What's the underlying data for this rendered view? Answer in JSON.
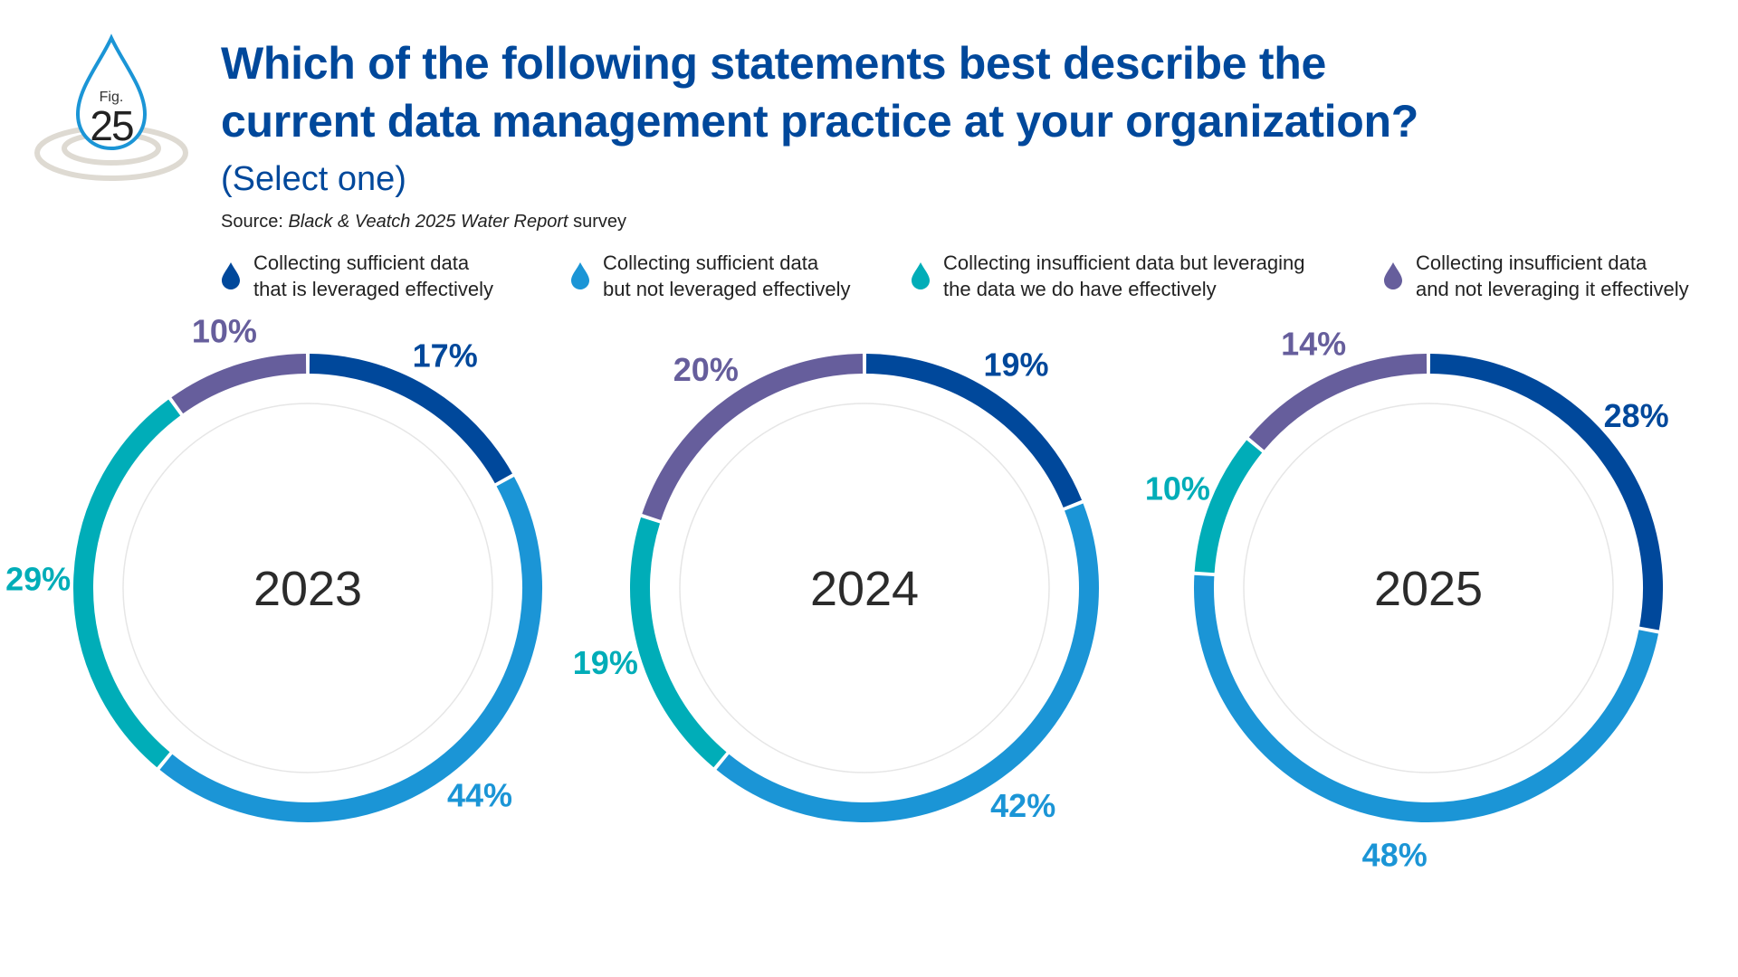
{
  "figure": {
    "prefix": "Fig.",
    "number": "25"
  },
  "header": {
    "title": "Which of the following statements best describe the\ncurrent data management practice at your organization?",
    "subtitle": "(Select one)",
    "source_prefix": "Source: ",
    "source_italic": "Black & Veatch 2025 Water Report",
    "source_suffix": " survey"
  },
  "colors": {
    "title": "#00489b",
    "badge_drop": "#1b95d6",
    "badge_ripple": "#dedad2"
  },
  "chart_data": {
    "type": "donut",
    "title": "Which of the following statements best describe the current data management practice at your organization?",
    "categories": [
      "2023",
      "2024",
      "2025"
    ],
    "series": [
      {
        "name": "Collecting sufficient data\nthat is leveraged effectively",
        "color": "#00489b",
        "icon": "water-drop-icon",
        "values": [
          17,
          19,
          28
        ]
      },
      {
        "name": "Collecting sufficient data\nbut not leveraged effectively",
        "color": "#1b95d6",
        "icon": "water-drop-icon",
        "values": [
          44,
          42,
          48
        ]
      },
      {
        "name": "Collecting insufficient data but leveraging\nthe data we do have effectively",
        "color": "#00adb8",
        "icon": "water-drop-icon",
        "values": [
          29,
          19,
          10
        ]
      },
      {
        "name": "Collecting insufficient data\nand not leveraging it effectively",
        "color": "#665e9c",
        "icon": "water-drop-icon",
        "values": [
          10,
          20,
          14
        ]
      }
    ],
    "value_suffix": "%",
    "legend": "top"
  }
}
